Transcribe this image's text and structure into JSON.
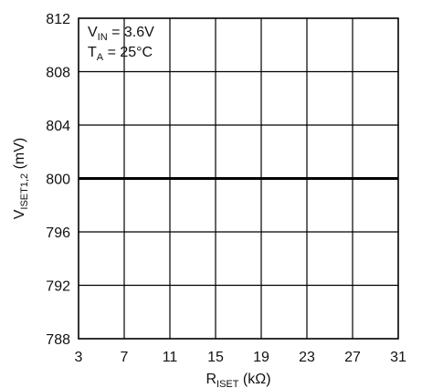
{
  "chart_data": {
    "type": "line",
    "title": "",
    "xlabel": {
      "main": "R",
      "sub": "ISET",
      "unit": " (kΩ)"
    },
    "ylabel": {
      "main": "V",
      "sub": "ISET1,2",
      "unit": " (mV)"
    },
    "xlim": [
      3,
      31
    ],
    "ylim": [
      788,
      812
    ],
    "x_ticks": [
      3,
      7,
      11,
      15,
      19,
      23,
      27,
      31
    ],
    "y_ticks": [
      788,
      792,
      796,
      800,
      804,
      808,
      812
    ],
    "grid": true,
    "annotations": [
      {
        "main": "V",
        "sub": "IN",
        "rest": " = 3.6V"
      },
      {
        "main": "T",
        "sub": "A",
        "rest": " = 25°C"
      }
    ],
    "series": [
      {
        "x": [
          3,
          31
        ],
        "y": [
          800,
          800
        ]
      }
    ]
  }
}
